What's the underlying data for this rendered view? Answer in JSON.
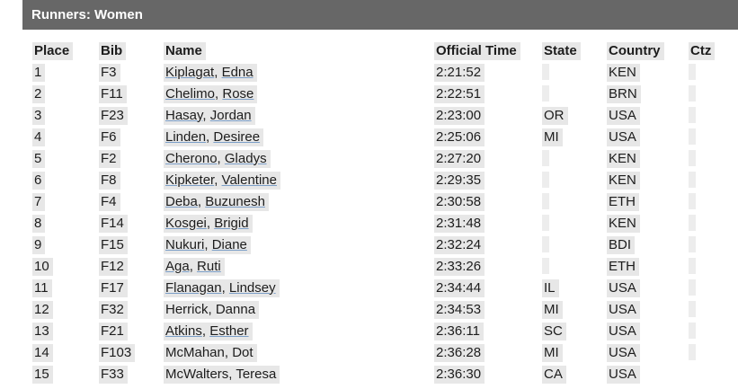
{
  "header": {
    "title": "Runners: Women"
  },
  "colors": {
    "header_bg": "#676767",
    "header_text": "#ffffff",
    "chip_bg": "#e7e7e7",
    "chip_empty_bg": "#ededed",
    "text": "#1c1c1c",
    "link_underline": "#7b9ec7"
  },
  "table": {
    "columns": [
      "Place",
      "Bib",
      "Name",
      "Official Time",
      "State",
      "Country",
      "Ctz"
    ],
    "rows": [
      {
        "place": "1",
        "bib": "F3",
        "name": "Kiplagat, Edna",
        "link": true,
        "time": "2:21:52",
        "state": "",
        "country": "KEN",
        "ctz": ""
      },
      {
        "place": "2",
        "bib": "F11",
        "name": "Chelimo, Rose",
        "link": true,
        "time": "2:22:51",
        "state": "",
        "country": "BRN",
        "ctz": ""
      },
      {
        "place": "3",
        "bib": "F23",
        "name": "Hasay, Jordan",
        "link": true,
        "time": "2:23:00",
        "state": "OR",
        "country": "USA",
        "ctz": ""
      },
      {
        "place": "4",
        "bib": "F6",
        "name": "Linden, Desiree",
        "link": true,
        "time": "2:25:06",
        "state": "MI",
        "country": "USA",
        "ctz": ""
      },
      {
        "place": "5",
        "bib": "F2",
        "name": "Cherono, Gladys",
        "link": true,
        "time": "2:27:20",
        "state": "",
        "country": "KEN",
        "ctz": ""
      },
      {
        "place": "6",
        "bib": "F8",
        "name": "Kipketer, Valentine",
        "link": true,
        "time": "2:29:35",
        "state": "",
        "country": "KEN",
        "ctz": ""
      },
      {
        "place": "7",
        "bib": "F4",
        "name": "Deba, Buzunesh",
        "link": true,
        "time": "2:30:58",
        "state": "",
        "country": "ETH",
        "ctz": ""
      },
      {
        "place": "8",
        "bib": "F14",
        "name": "Kosgei, Brigid",
        "link": true,
        "time": "2:31:48",
        "state": "",
        "country": "KEN",
        "ctz": ""
      },
      {
        "place": "9",
        "bib": "F15",
        "name": "Nukuri, Diane",
        "link": true,
        "time": "2:32:24",
        "state": "",
        "country": "BDI",
        "ctz": ""
      },
      {
        "place": "10",
        "bib": "F12",
        "name": "Aga, Ruti",
        "link": true,
        "time": "2:33:26",
        "state": "",
        "country": "ETH",
        "ctz": ""
      },
      {
        "place": "11",
        "bib": "F17",
        "name": "Flanagan, Lindsey",
        "link": true,
        "time": "2:34:44",
        "state": "IL",
        "country": "USA",
        "ctz": ""
      },
      {
        "place": "12",
        "bib": "F32",
        "name": "Herrick, Danna",
        "link": false,
        "time": "2:34:53",
        "state": "MI",
        "country": "USA",
        "ctz": ""
      },
      {
        "place": "13",
        "bib": "F21",
        "name": "Atkins, Esther",
        "link": true,
        "time": "2:36:11",
        "state": "SC",
        "country": "USA",
        "ctz": ""
      },
      {
        "place": "14",
        "bib": "F103",
        "name": "McMahan, Dot",
        "link": false,
        "time": "2:36:28",
        "state": "MI",
        "country": "USA",
        "ctz": ""
      },
      {
        "place": "15",
        "bib": "F33",
        "name": "McWalters, Teresa",
        "link": false,
        "time": "2:36:30",
        "state": "CA",
        "country": "USA",
        "ctz": null
      }
    ]
  }
}
